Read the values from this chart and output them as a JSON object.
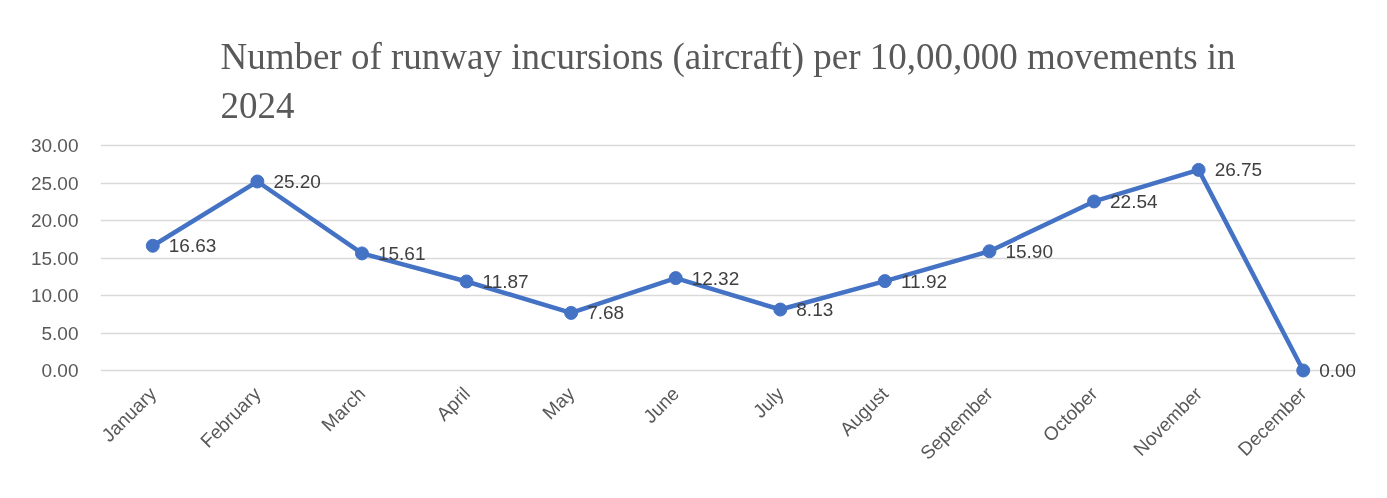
{
  "chart_data": {
    "type": "line",
    "title": "Number of runway incursions (aircraft) per 10,00,000 movements in 2024",
    "categories": [
      "January",
      "February",
      "March",
      "April",
      "May",
      "June",
      "July",
      "August",
      "September",
      "October",
      "November",
      "December"
    ],
    "values": [
      16.63,
      25.2,
      15.61,
      11.87,
      7.68,
      12.32,
      8.13,
      11.92,
      15.9,
      22.54,
      26.75,
      0
    ],
    "value_labels": [
      "16.63",
      "25.20",
      "15.61",
      "11.87",
      "7.68",
      "12.32",
      "8.13",
      "11.92",
      "15.90",
      "22.54",
      "26.75",
      "0.00"
    ],
    "color": "#4472c4",
    "ylim": [
      0,
      30
    ],
    "yticks": [
      {
        "value": 0,
        "label": "0.00"
      },
      {
        "value": 5,
        "label": "5.00"
      },
      {
        "value": 10,
        "label": "10.00"
      },
      {
        "value": 15,
        "label": "15.00"
      },
      {
        "value": 20,
        "label": "20.00"
      },
      {
        "value": 25,
        "label": "25.00"
      },
      {
        "value": 30,
        "label": "30.00"
      }
    ],
    "grid": "y",
    "marker": "circle",
    "line_style": "solid"
  }
}
